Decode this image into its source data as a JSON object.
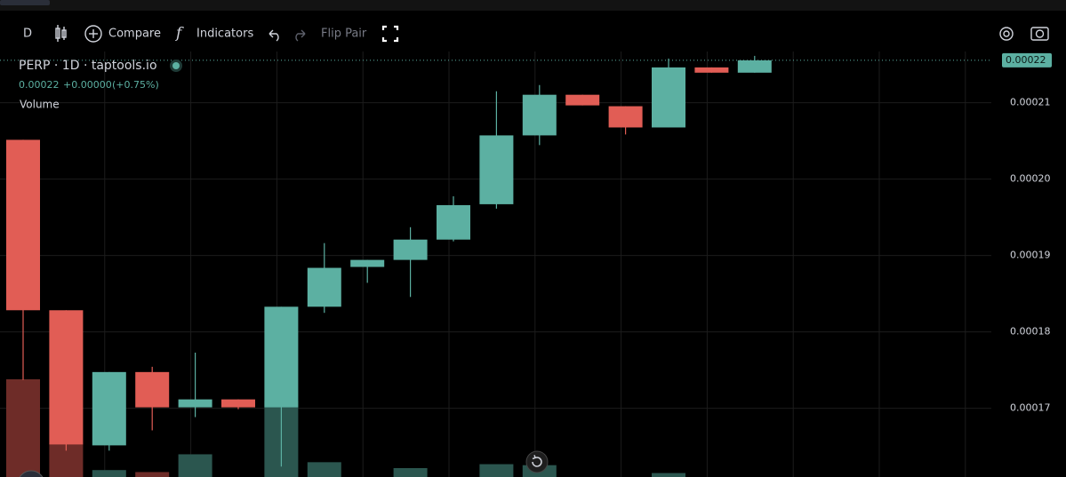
{
  "toolbar": {
    "interval": "D",
    "compare": "Compare",
    "indicators": "Indicators",
    "flip_pair": "Flip Pair"
  },
  "chart_data": {
    "type": "candlestick",
    "title": "PERP · 1D · taptools.io",
    "legend_price": "0.00022",
    "legend_change": "+0.00000",
    "legend_change_pct": "(+0.75%)",
    "volume_label": "Volume",
    "up_color": "#5cb0a2",
    "down_color": "#e15d55",
    "up_volume_color": "#2b564f",
    "down_volume_color": "#6e2c28",
    "open": [
      0.00020514,
      0.00018283,
      0.00016514,
      0.00017474,
      0.00017012,
      0.00017116,
      0.00017012,
      0.00018329,
      0.0001885,
      0.00018942,
      0.00019208,
      0.00019671,
      0.00020572,
      0.00021104,
      0.00020954,
      0.00020676,
      0.00021462,
      0.00021393
    ],
    "high": [
      0.00020514,
      0.00018283,
      0.00017474,
      0.00017543,
      0.00017728,
      0.00017116,
      0.00018329,
      0.00019162,
      0.00018942,
      0.0001937,
      0.00019775,
      0.0002115,
      0.00021231,
      0.00021104,
      0.00020954,
      0.00021578,
      0.00021462,
      0.00021613
    ],
    "low": [
      0.0001737,
      0.00016445,
      0.00016445,
      0.00016711,
      0.00016884,
      0.00016988,
      0.00016237,
      0.00018249,
      0.00018642,
      0.00018457,
      0.00019185,
      0.00019613,
      0.00020445,
      0.00020965,
      0.00020584,
      0.00020676,
      0.00021393,
      0.00021393
    ],
    "close": [
      0.00018283,
      0.00016526,
      0.00017474,
      0.00017012,
      0.00017116,
      0.00017012,
      0.00018329,
      0.00018838,
      0.00018942,
      0.00019208,
      0.00019659,
      0.00020572,
      0.00021104,
      0.00020965,
      0.00020676,
      0.00021462,
      0.00021393,
      0.00021555
    ],
    "volume": [
      99,
      34,
      7,
      5,
      23,
      0,
      77,
      15,
      0,
      9,
      0,
      13,
      12,
      0,
      0,
      4,
      0,
      0
    ],
    "ylim": [
      0.000161,
      0.0002167
    ],
    "yticks": [
      0.00017,
      0.00018,
      0.00019,
      {
        "value": 0.0002,
        "label": "0.00020"
      },
      0.00021
    ],
    "last_price": {
      "value": 0.00021555,
      "label": "0.00022"
    },
    "grid": true
  }
}
